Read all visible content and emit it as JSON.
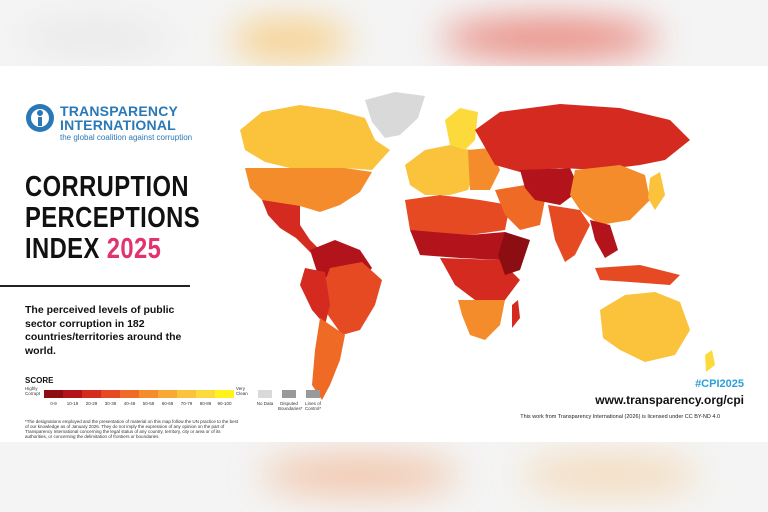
{
  "logo": {
    "line1": "TRANSPARENCY",
    "line2": "INTERNATIONAL",
    "tagline": "the global coalition against corruption"
  },
  "title": {
    "line1": "CORRUPTION",
    "line2": "PERCEPTIONS",
    "line3": "INDEX",
    "year": "2025"
  },
  "description": "The perceived levels of public sector corruption in 182 countries/territories around the world.",
  "legend": {
    "title": "SCORE",
    "low_label": "Highly Corrupt",
    "high_label": "Very Clean",
    "bins": [
      {
        "label": "0-9",
        "color": "#8c0d12"
      },
      {
        "label": "10-19",
        "color": "#b3141b"
      },
      {
        "label": "20-29",
        "color": "#d42a20"
      },
      {
        "label": "30-39",
        "color": "#e64a22"
      },
      {
        "label": "40-49",
        "color": "#ef6b25"
      },
      {
        "label": "50-59",
        "color": "#f58c2b"
      },
      {
        "label": "60-69",
        "color": "#f8a934"
      },
      {
        "label": "70-79",
        "color": "#fbc23b"
      },
      {
        "label": "80-89",
        "color": "#fdda3c"
      },
      {
        "label": "90-100",
        "color": "#fff21f"
      }
    ],
    "no_data": "No Data",
    "disputed": "Disputed Boundaries*",
    "lines_of_control": "Lines of Control*"
  },
  "footnote": "*The designations employed and the presentation of material on this map follow the UN practice to the best of our knowledge as of January 2026. They do not imply the expression of any opinion on the part of Transparency International concerning the legal status of any country, territory, city or area or of its authorities, or concerning the delimitation of frontiers or boundaries.",
  "hashtag": "#CPI2025",
  "url": "www.transparency.org/cpi",
  "license": "This work from Transparency International (2026) is licensed under CC BY-ND 4.0"
}
